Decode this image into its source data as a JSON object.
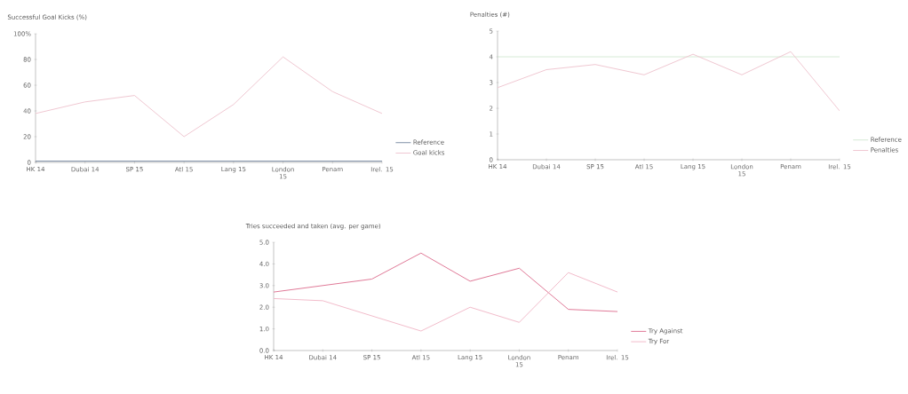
{
  "chart_data": [
    {
      "type": "line",
      "title": "Successful Goal Kicks (%)",
      "categories": [
        "HK 14",
        "Dubai 14",
        "SP 15",
        "Atl 15",
        "Lang 15",
        "London 15",
        "Penam",
        "Irel. 15"
      ],
      "ylim": [
        0,
        100
      ],
      "yticks": [
        0,
        20,
        40,
        60,
        80,
        {
          "value": 100,
          "label": "100%"
        }
      ],
      "legend": "bottom right",
      "series": [
        {
          "name": "Reference",
          "color": "#7f8fa6",
          "values": [
            1,
            1,
            1,
            1,
            1,
            1,
            1,
            1
          ]
        },
        {
          "name": "Goal kicks",
          "color": "#f0c8d2",
          "values": [
            38,
            47,
            52,
            20,
            45,
            82,
            55,
            38
          ]
        }
      ]
    },
    {
      "type": "line",
      "title": "Penalties (#)",
      "categories": [
        "HK 14",
        "Dubai 14",
        "SP 15",
        "Atl 15",
        "Lang 15",
        "London 15",
        "Penam",
        "Irel. 15"
      ],
      "ylim": [
        0,
        5
      ],
      "yticks": [
        0,
        1,
        2,
        3,
        4,
        5
      ],
      "legend": "bottom right",
      "series": [
        {
          "name": "Reference",
          "color": "#d6ead6",
          "values": [
            4,
            4,
            4,
            4,
            4,
            4,
            4,
            4
          ]
        },
        {
          "name": "Penalties",
          "color": "#f0c8d2",
          "values": [
            2.8,
            3.5,
            3.7,
            3.3,
            4.1,
            3.3,
            4.2,
            1.9
          ]
        }
      ]
    },
    {
      "type": "line",
      "title": "Tries succeeded and taken (avg. per game)",
      "categories": [
        "HK 14",
        "Dubai 14",
        "SP 15",
        "Atl 15",
        "Lang 15",
        "London 15",
        "Penam",
        "Irel. 15"
      ],
      "ylim": [
        0,
        5
      ],
      "yticks": [
        {
          "value": 0,
          "label": "0.0"
        },
        {
          "value": 1,
          "label": "1.0"
        },
        {
          "value": 2,
          "label": "2.0"
        },
        {
          "value": 3,
          "label": "3.0"
        },
        {
          "value": 4,
          "label": "4.0"
        },
        {
          "value": 5,
          "label": "5.0"
        }
      ],
      "legend": "bottom right",
      "series": [
        {
          "name": "Try Against",
          "color": "#e07a98",
          "values": [
            2.7,
            3.0,
            3.3,
            4.5,
            3.2,
            3.8,
            1.9,
            1.8
          ]
        },
        {
          "name": "Try For",
          "color": "#f2bccb",
          "values": [
            2.4,
            2.3,
            1.6,
            0.9,
            2.0,
            1.3,
            3.6,
            2.7
          ]
        }
      ]
    }
  ]
}
